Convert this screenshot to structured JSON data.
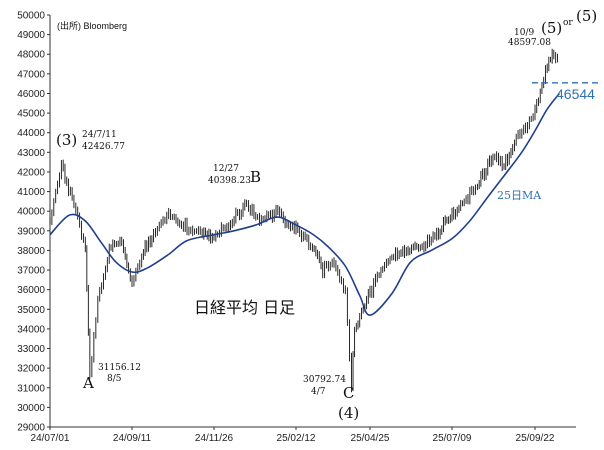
{
  "chart_data": {
    "type": "line",
    "title": "日経平均 日足",
    "source": "(出所) Bloomberg",
    "ylim": [
      29000,
      50000
    ],
    "y_ticks": [
      29000,
      30000,
      31000,
      32000,
      33000,
      34000,
      35000,
      36000,
      37000,
      38000,
      39000,
      40000,
      41000,
      42000,
      43000,
      44000,
      45000,
      46000,
      47000,
      48000,
      49000,
      50000
    ],
    "x_ticks": [
      "24/07/01",
      "24/09/11",
      "24/11/26",
      "25/02/12",
      "25/04/25",
      "25/07/09",
      "25/09/22"
    ],
    "series": [
      {
        "kind": "daily",
        "x": [
          "24/07/01",
          "24/07/11",
          "24/07/22",
          "24/08/01",
          "24/08/05",
          "24/08/12",
          "24/08/22",
          "24/09/02",
          "24/09/11",
          "24/09/20",
          "24/10/01",
          "24/10/15",
          "24/11/01",
          "24/11/15",
          "24/11/26",
          "24/12/10",
          "24/12/27",
          "25/01/10",
          "25/01/24",
          "25/02/12",
          "25/02/28",
          "25/03/10",
          "25/03/21",
          "25/04/01",
          "25/04/07",
          "25/04/10",
          "25/04/25",
          "25/05/10",
          "25/05/25",
          "25/06/10",
          "25/06/25",
          "25/07/09",
          "25/07/20",
          "25/08/01",
          "25/08/15",
          "25/08/25",
          "25/09/05",
          "25/09/22",
          "25/10/03",
          "25/10/09",
          "25/10/14"
        ],
        "values": [
          39600,
          42400,
          40300,
          38200,
          31500,
          35500,
          38000,
          38500,
          36200,
          37800,
          38900,
          39800,
          39200,
          38800,
          38600,
          39400,
          40300,
          39500,
          39900,
          39100,
          38200,
          37000,
          37500,
          35800,
          31200,
          34000,
          35800,
          37500,
          38000,
          38200,
          38800,
          39900,
          40500,
          41300,
          42800,
          42300,
          43800,
          45000,
          47500,
          48000,
          47700
        ]
      },
      {
        "name": "25日MA",
        "x": [
          "24/07/01",
          "24/07/18",
          "24/08/01",
          "24/08/15",
          "24/08/28",
          "24/09/11",
          "24/09/25",
          "24/10/15",
          "24/11/01",
          "24/11/26",
          "24/12/15",
          "25/01/05",
          "25/01/25",
          "25/02/12",
          "25/03/01",
          "25/03/15",
          "25/04/01",
          "25/04/15",
          "25/04/25",
          "25/05/15",
          "25/06/01",
          "25/06/20",
          "25/07/09",
          "25/07/25",
          "25/08/10",
          "25/08/25",
          "25/09/10",
          "25/09/22",
          "25/10/03",
          "25/10/14"
        ],
        "values": [
          38800,
          39800,
          39500,
          38400,
          37400,
          36900,
          37100,
          37800,
          38500,
          38800,
          39000,
          39300,
          39700,
          39300,
          38800,
          38200,
          37200,
          35700,
          34700,
          35800,
          37400,
          38000,
          38600,
          39500,
          40700,
          41800,
          43000,
          44100,
          45200,
          46000
        ]
      }
    ],
    "reference_line": {
      "value": 46544,
      "label": "46544",
      "style": "dashed",
      "color": "#2e6fb7"
    },
    "annotations": [
      {
        "x": "24/07/11",
        "y": 42426.77,
        "text_lines": [
          "24/7/11",
          "42426.77"
        ],
        "wave_label": "(3)"
      },
      {
        "x": "24/08/05",
        "y": 31156.12,
        "text_lines": [
          "31156.12",
          "8/5"
        ],
        "wave_label": "A"
      },
      {
        "x": "24/12/27",
        "y": 40398.23,
        "text_lines": [
          "12/27",
          "40398.23"
        ],
        "wave_label": "B"
      },
      {
        "x": "25/04/07",
        "y": 30792.74,
        "text_lines": [
          "30792.74",
          "4/7"
        ],
        "wave_label": "C",
        "extra_label": "(4)"
      },
      {
        "x": "25/10/09",
        "y": 48597.08,
        "text_lines": [
          "10/9",
          "48597.08"
        ],
        "wave_label": "(5)",
        "alt_label": "or",
        "alt_wave_label": "(5)"
      }
    ],
    "ma_label": "25日MA",
    "colors": {
      "price": "#111111",
      "ma": "#1f3f8c",
      "ref": "#2e6fb7",
      "ma_label": "#2e6fb7",
      "or_label": "#2e6fb7"
    },
    "grid": false
  }
}
